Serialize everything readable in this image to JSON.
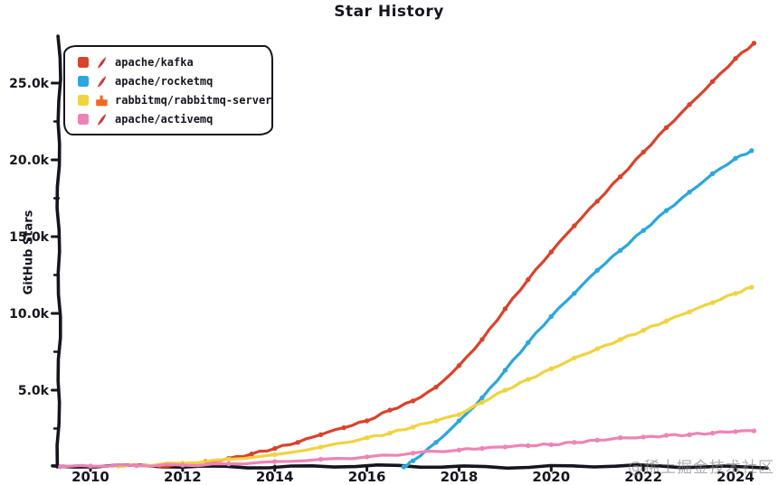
{
  "title": "Star History",
  "y_axis_title": "GitHub Stars",
  "watermark": "@稀土掘金技术社区",
  "colors": {
    "kafka": "#d9432b",
    "rocketmq": "#2ba7dd",
    "rabbitmq": "#f0d341",
    "activemq": "#ee84b6",
    "axis": "#15151f"
  },
  "legend": {
    "items": [
      {
        "label": "apache/kafka",
        "color": "#d9432b",
        "icon": "apache-feather-icon"
      },
      {
        "label": "apache/rocketmq",
        "color": "#2ba7dd",
        "icon": "apache-feather-icon"
      },
      {
        "label": "rabbitmq/rabbitmq-server",
        "color": "#f0d341",
        "icon": "rabbitmq-icon"
      },
      {
        "label": "apache/activemq",
        "color": "#ee84b6",
        "icon": "apache-feather-icon"
      }
    ]
  },
  "axes": {
    "x_ticks": [
      {
        "v": 2010,
        "label": "2010"
      },
      {
        "v": 2012,
        "label": "2012"
      },
      {
        "v": 2014,
        "label": "2014"
      },
      {
        "v": 2016,
        "label": "2016"
      },
      {
        "v": 2018,
        "label": "2018"
      },
      {
        "v": 2020,
        "label": "2020"
      },
      {
        "v": 2022,
        "label": "2022"
      },
      {
        "v": 2024,
        "label": "2024"
      }
    ],
    "y_ticks": [
      {
        "v": 5000,
        "label": "5.0k"
      },
      {
        "v": 10000,
        "label": "10.0k"
      },
      {
        "v": 15000,
        "label": "15.0k"
      },
      {
        "v": 20000,
        "label": "20.0k"
      },
      {
        "v": 25000,
        "label": "25.0k"
      }
    ],
    "y_minor_ticks": [
      2500,
      7500,
      12500,
      17500,
      22500
    ]
  },
  "chart_data": {
    "type": "line",
    "title": "Star History",
    "xlabel": "",
    "ylabel": "GitHub Stars",
    "x_unit": "year",
    "y_unit": "GitHub stars",
    "xlim": [
      2009.3,
      2024.6
    ],
    "ylim": [
      0,
      28000
    ],
    "grid": false,
    "legend_position": "top-left",
    "series": [
      {
        "name": "apache/kafka",
        "color": "#d9432b",
        "points": [
          [
            2011.5,
            50
          ],
          [
            2012,
            200
          ],
          [
            2012.5,
            350
          ],
          [
            2013,
            550
          ],
          [
            2013.5,
            850
          ],
          [
            2014,
            1200
          ],
          [
            2014.5,
            1600
          ],
          [
            2015,
            2100
          ],
          [
            2015.5,
            2550
          ],
          [
            2016,
            3000
          ],
          [
            2016.5,
            3700
          ],
          [
            2017,
            4300
          ],
          [
            2017.5,
            5200
          ],
          [
            2018,
            6600
          ],
          [
            2018.5,
            8300
          ],
          [
            2019,
            10300
          ],
          [
            2019.5,
            12200
          ],
          [
            2020,
            14000
          ],
          [
            2020.5,
            15700
          ],
          [
            2021,
            17300
          ],
          [
            2021.5,
            18900
          ],
          [
            2022,
            20500
          ],
          [
            2022.5,
            22100
          ],
          [
            2023,
            23600
          ],
          [
            2023.5,
            25100
          ],
          [
            2024,
            26600
          ],
          [
            2024.4,
            27600
          ]
        ]
      },
      {
        "name": "apache/rocketmq",
        "color": "#2ba7dd",
        "points": [
          [
            2016.8,
            0
          ],
          [
            2017,
            400
          ],
          [
            2017.5,
            1600
          ],
          [
            2018,
            3000
          ],
          [
            2018.5,
            4500
          ],
          [
            2019,
            6300
          ],
          [
            2019.5,
            8100
          ],
          [
            2020,
            9800
          ],
          [
            2020.5,
            11300
          ],
          [
            2021,
            12800
          ],
          [
            2021.5,
            14100
          ],
          [
            2022,
            15400
          ],
          [
            2022.5,
            16700
          ],
          [
            2023,
            17900
          ],
          [
            2023.5,
            19100
          ],
          [
            2024,
            20100
          ],
          [
            2024.35,
            20600
          ]
        ]
      },
      {
        "name": "rabbitmq/rabbitmq-server",
        "color": "#f0d341",
        "points": [
          [
            2010.6,
            50
          ],
          [
            2011,
            100
          ],
          [
            2012,
            250
          ],
          [
            2013,
            500
          ],
          [
            2014,
            800
          ],
          [
            2015,
            1300
          ],
          [
            2016,
            1900
          ],
          [
            2016.5,
            2200
          ],
          [
            2017,
            2600
          ],
          [
            2017.5,
            3000
          ],
          [
            2018,
            3400
          ],
          [
            2018.5,
            4200
          ],
          [
            2019,
            5000
          ],
          [
            2019.5,
            5700
          ],
          [
            2020,
            6400
          ],
          [
            2020.5,
            7100
          ],
          [
            2021,
            7700
          ],
          [
            2021.5,
            8300
          ],
          [
            2022,
            8900
          ],
          [
            2022.5,
            9500
          ],
          [
            2023,
            10100
          ],
          [
            2023.5,
            10700
          ],
          [
            2024,
            11300
          ],
          [
            2024.35,
            11700
          ]
        ]
      },
      {
        "name": "apache/activemq",
        "color": "#ee84b6",
        "points": [
          [
            2009.35,
            20
          ],
          [
            2010,
            50
          ],
          [
            2011,
            80
          ],
          [
            2012,
            120
          ],
          [
            2013,
            200
          ],
          [
            2014,
            350
          ],
          [
            2015,
            500
          ],
          [
            2016,
            650
          ],
          [
            2017,
            900
          ],
          [
            2018,
            1100
          ],
          [
            2018.5,
            1200
          ],
          [
            2019,
            1300
          ],
          [
            2019.5,
            1380
          ],
          [
            2020,
            1450
          ],
          [
            2020.5,
            1600
          ],
          [
            2021,
            1750
          ],
          [
            2021.5,
            1900
          ],
          [
            2022,
            1950
          ],
          [
            2022.5,
            2050
          ],
          [
            2023,
            2100
          ],
          [
            2023.5,
            2200
          ],
          [
            2024,
            2300
          ],
          [
            2024.4,
            2350
          ]
        ]
      }
    ]
  }
}
